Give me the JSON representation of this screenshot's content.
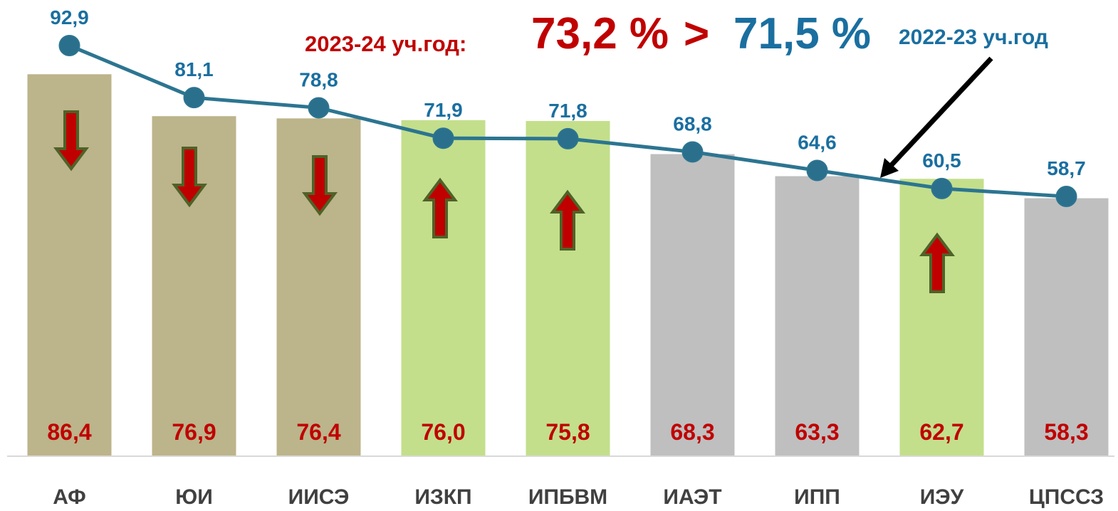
{
  "chart_data": {
    "type": "bar",
    "categories": [
      "АФ",
      "ЮИ",
      "ИИСЭ",
      "ИЗКП",
      "ИПБВМ",
      "ИАЭТ",
      "ИПП",
      "ИЭУ",
      "ЦПССЗ"
    ],
    "series": [
      {
        "name": "2023-24 уч.год:",
        "type": "bar",
        "color": "#c00000",
        "colors": [
          "#bcb48a",
          "#bcb48a",
          "#bcb48a",
          "#c3df8b",
          "#c3df8b",
          "#bfbfbf",
          "#bfbfbf",
          "#c3df8b",
          "#bfbfbf"
        ],
        "values": [
          86.4,
          76.9,
          76.4,
          76.0,
          75.8,
          68.3,
          63.3,
          62.7,
          58.3
        ],
        "value_labels": [
          "86,4",
          "76,9",
          "76,4",
          "76,0",
          "75,8",
          "68,3",
          "63,3",
          "62,7",
          "58,3"
        ]
      },
      {
        "name": "2022-23 уч.год",
        "type": "line",
        "color": "#2c7591",
        "values": [
          92.9,
          81.1,
          78.8,
          71.9,
          71.8,
          68.8,
          64.6,
          60.5,
          58.7
        ],
        "value_labels": [
          "92,9",
          "81,1",
          "78,8",
          "71,9",
          "71,8",
          "68,8",
          "64,6",
          "60,5",
          "58,7"
        ]
      }
    ],
    "annotations": [
      "73,2 %",
      ">",
      "71,5 %"
    ],
    "ylim": [
      0,
      100
    ]
  }
}
